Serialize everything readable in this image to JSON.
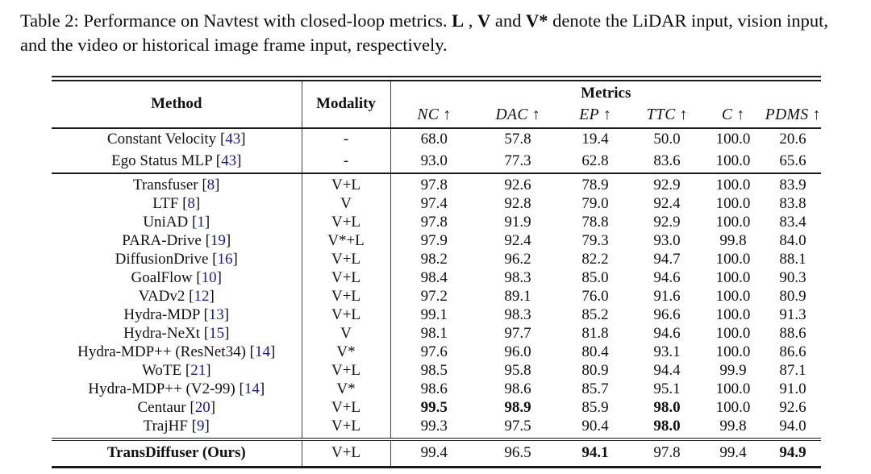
{
  "caption": {
    "segments": [
      {
        "text": "Table 2: Performance on Navtest with closed-loop metrics. ",
        "bold": false
      },
      {
        "text": "L",
        "bold": true
      },
      {
        "text": " , ",
        "bold": false
      },
      {
        "text": "V",
        "bold": true
      },
      {
        "text": " and ",
        "bold": false
      },
      {
        "text": "V*",
        "bold": true
      },
      {
        "text": " denote the LiDAR input, vision input, and the video or historical image frame input, respectively.",
        "bold": false
      }
    ]
  },
  "table": {
    "headers": {
      "method": "Method",
      "modality": "Modality",
      "metrics_group": "Metrics",
      "metrics": [
        "NC",
        "DAC",
        "EP",
        "TTC",
        "C",
        "PDMS"
      ],
      "arrow": "↑"
    },
    "colors": {
      "citation": "#1a1a9c",
      "rule": "#1a1a1a"
    },
    "sections": [
      {
        "name": "baseline",
        "rows": [
          {
            "method": "Constant Velocity",
            "cite": "43",
            "modality": "-",
            "values": [
              "68.0",
              "57.8",
              "19.4",
              "50.0",
              "100.0",
              "20.6"
            ],
            "bold_values": [],
            "bold_method": false
          },
          {
            "method": "Ego Status MLP",
            "cite": "43",
            "modality": "-",
            "values": [
              "93.0",
              "77.3",
              "62.8",
              "83.6",
              "100.0",
              "65.6"
            ],
            "bold_values": [],
            "bold_method": false
          }
        ]
      },
      {
        "name": "main",
        "rows": [
          {
            "method": "Transfuser",
            "cite": "8",
            "modality": "V+L",
            "values": [
              "97.8",
              "92.6",
              "78.9",
              "92.9",
              "100.0",
              "83.9"
            ],
            "bold_values": [],
            "bold_method": false
          },
          {
            "method": "LTF",
            "cite": "8",
            "modality": "V",
            "values": [
              "97.4",
              "92.8",
              "79.0",
              "92.4",
              "100.0",
              "83.8"
            ],
            "bold_values": [],
            "bold_method": false
          },
          {
            "method": "UniAD",
            "cite": "1",
            "modality": "V+L",
            "values": [
              "97.8",
              "91.9",
              "78.8",
              "92.9",
              "100.0",
              "83.4"
            ],
            "bold_values": [],
            "bold_method": false
          },
          {
            "method": "PARA-Drive",
            "cite": "19",
            "modality": "V*+L",
            "values": [
              "97.9",
              "92.4",
              "79.3",
              "93.0",
              "99.8",
              "84.0"
            ],
            "bold_values": [],
            "bold_method": false
          },
          {
            "method": "DiffusionDrive",
            "cite": "16",
            "modality": "V+L",
            "values": [
              "98.2",
              "96.2",
              "82.2",
              "94.7",
              "100.0",
              "88.1"
            ],
            "bold_values": [],
            "bold_method": false
          },
          {
            "method": "GoalFlow",
            "cite": "10",
            "modality": "V+L",
            "values": [
              "98.4",
              "98.3",
              "85.0",
              "94.6",
              "100.0",
              "90.3"
            ],
            "bold_values": [],
            "bold_method": false
          },
          {
            "method": "VADv2",
            "cite": "12",
            "modality": "V+L",
            "values": [
              "97.2",
              "89.1",
              "76.0",
              "91.6",
              "100.0",
              "80.9"
            ],
            "bold_values": [],
            "bold_method": false
          },
          {
            "method": "Hydra-MDP",
            "cite": "13",
            "modality": "V+L",
            "values": [
              "99.1",
              "98.3",
              "85.2",
              "96.6",
              "100.0",
              "91.3"
            ],
            "bold_values": [],
            "bold_method": false
          },
          {
            "method": "Hydra-NeXt",
            "cite": "15",
            "modality": "V",
            "values": [
              "98.1",
              "97.7",
              "81.8",
              "94.6",
              "100.0",
              "88.6"
            ],
            "bold_values": [],
            "bold_method": false
          },
          {
            "method": "Hydra-MDP++ (ResNet34)",
            "cite": "14",
            "modality": "V*",
            "values": [
              "97.6",
              "96.0",
              "80.4",
              "93.1",
              "100.0",
              "86.6"
            ],
            "bold_values": [],
            "bold_method": false
          },
          {
            "method": "WoTE",
            "cite": "21",
            "modality": "V+L",
            "values": [
              "98.5",
              "95.8",
              "80.9",
              "94.4",
              "99.9",
              "87.1"
            ],
            "bold_values": [],
            "bold_method": false
          },
          {
            "method": "Hydra-MDP++ (V2-99)",
            "cite": "14",
            "modality": "V*",
            "values": [
              "98.6",
              "98.6",
              "85.7",
              "95.1",
              "100.0",
              "91.0"
            ],
            "bold_values": [],
            "bold_method": false
          },
          {
            "method": "Centaur",
            "cite": "20",
            "modality": "V+L",
            "values": [
              "99.5",
              "98.9",
              "85.9",
              "98.0",
              "100.0",
              "92.6"
            ],
            "bold_values": [
              0,
              1,
              3
            ],
            "bold_method": false
          },
          {
            "method": "TrajHF",
            "cite": "9",
            "modality": "V+L",
            "values": [
              "99.3",
              "97.5",
              "90.4",
              "98.0",
              "99.8",
              "94.0"
            ],
            "bold_values": [
              3
            ],
            "bold_method": false
          }
        ]
      },
      {
        "name": "final",
        "rows": [
          {
            "method": "TransDiffuser (Ours)",
            "cite": "",
            "modality": "V+L",
            "values": [
              "99.4",
              "96.5",
              "94.1",
              "97.8",
              "99.4",
              "94.9"
            ],
            "bold_values": [
              2,
              5
            ],
            "bold_method": true
          }
        ]
      }
    ]
  }
}
